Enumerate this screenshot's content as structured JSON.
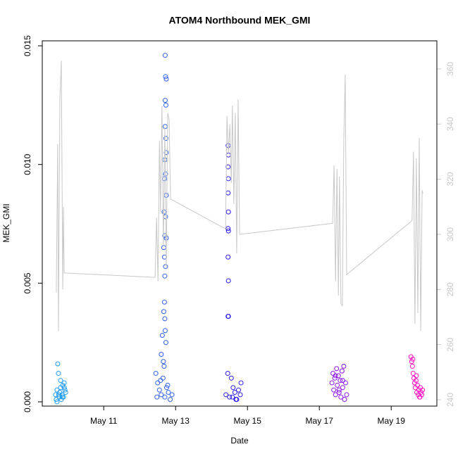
{
  "chart_data": {
    "type": "scatter",
    "title": "ATOM4 Northbound MEK_GMI",
    "xlabel": "Date",
    "ylabel": "MEK_GMI",
    "xlim": [
      9.29,
      20.27
    ],
    "xticks": [
      {
        "value": 11,
        "label": "May 11"
      },
      {
        "value": 13,
        "label": "May 13"
      },
      {
        "value": 15,
        "label": "May 15"
      },
      {
        "value": 17,
        "label": "May 17"
      },
      {
        "value": 19,
        "label": "May 19"
      }
    ],
    "ylim": [
      -0.00018,
      0.01521
    ],
    "yticks": [
      {
        "value": 0,
        "label": "0.000"
      },
      {
        "value": 0.005,
        "label": "0.005"
      },
      {
        "value": 0.01,
        "label": "0.010"
      },
      {
        "value": 0.015,
        "label": "0.015"
      }
    ],
    "y2lim": [
      237.7,
      370.2
    ],
    "y2ticks": [
      240,
      260,
      280,
      300,
      320,
      340,
      360
    ],
    "y2color": "#c8c8c8",
    "series": [
      {
        "color": "#1f9bff",
        "x": [
          9.66,
          9.68,
          9.7,
          9.72,
          9.74,
          9.76,
          9.78,
          9.8,
          9.82,
          9.84,
          9.86,
          9.88,
          9.9,
          9.92,
          9.94,
          9.7,
          9.75,
          9.8,
          9.85,
          9.9
        ],
        "values": [
          0.0003,
          0.0001,
          0.0005,
          0.0016,
          0.0012,
          0.0002,
          0.0004,
          0.0006,
          0.0001,
          0.0003,
          0.0007,
          0.0002,
          0.0008,
          0.0005,
          0.0004,
          0.0,
          0.0003,
          0.0009,
          0.0002,
          0.0006
        ]
      },
      {
        "color": "#2f62f0",
        "x": [
          12.71,
          12.72,
          12.74,
          12.71,
          12.73,
          12.71,
          12.73,
          12.74,
          12.7,
          12.72,
          12.69,
          12.74,
          12.68,
          12.72,
          12.7,
          12.74,
          12.67,
          12.69,
          12.72,
          12.7,
          12.69,
          12.67,
          12.7,
          12.71,
          12.63,
          12.73,
          12.6,
          12.66,
          12.45,
          12.5,
          12.55,
          12.6,
          12.65,
          12.7,
          12.75,
          12.8,
          12.85,
          12.9,
          12.58,
          12.68,
          12.78,
          12.48
        ],
        "values": [
          0.0146,
          0.0137,
          0.0136,
          0.0127,
          0.0125,
          0.0116,
          0.0111,
          0.0105,
          0.0102,
          0.0096,
          0.0094,
          0.0087,
          0.008,
          0.0078,
          0.007,
          0.0069,
          0.0065,
          0.0061,
          0.0057,
          0.0053,
          0.0042,
          0.0038,
          0.0035,
          0.003,
          0.0028,
          0.0025,
          0.002,
          0.0017,
          0.0012,
          0.0008,
          0.0005,
          0.0003,
          0.001,
          0.0002,
          0.0006,
          0.0004,
          0.0001,
          0.0003,
          0.0009,
          0.0015,
          0.0007,
          0.0002
        ]
      },
      {
        "color": "#2a1af0",
        "x": [
          14.46,
          14.47,
          14.46,
          14.47,
          14.46,
          14.47,
          14.46,
          14.47,
          14.46,
          14.47,
          14.46,
          14.47,
          14.45,
          14.55,
          14.6,
          14.4,
          14.5,
          14.65,
          14.7,
          14.75,
          14.8,
          14.82,
          14.58,
          14.68
        ],
        "values": [
          0.0108,
          0.0104,
          0.0099,
          0.0094,
          0.0088,
          0.008,
          0.0073,
          0.0072,
          0.0061,
          0.0051,
          0.0036,
          0.0036,
          0.0012,
          0.001,
          0.0006,
          0.0003,
          0.0002,
          0.0004,
          0.0001,
          0.0005,
          0.0003,
          0.0008,
          0.0002,
          0.0001
        ]
      },
      {
        "color": "#8a12f0",
        "x": [
          17.35,
          17.38,
          17.4,
          17.43,
          17.45,
          17.48,
          17.5,
          17.53,
          17.55,
          17.58,
          17.6,
          17.63,
          17.65,
          17.68,
          17.7,
          17.73,
          17.76,
          17.45,
          17.55,
          17.65
        ],
        "values": [
          0.0008,
          0.0012,
          0.0005,
          0.001,
          0.0003,
          0.0014,
          0.0007,
          0.0011,
          0.0004,
          0.0009,
          0.0002,
          0.0013,
          0.0006,
          0.0015,
          0.0001,
          0.0008,
          0.0003,
          0.0011,
          0.0005,
          0.0009
        ]
      },
      {
        "color": "#ff12c4",
        "x": [
          19.55,
          19.57,
          19.59,
          19.61,
          19.63,
          19.65,
          19.67,
          19.69,
          19.71,
          19.73,
          19.75,
          19.77,
          19.79,
          19.81,
          19.83,
          19.85,
          19.87,
          19.6,
          19.7,
          19.8
        ],
        "values": [
          0.0019,
          0.0017,
          0.0015,
          0.0012,
          0.001,
          0.0008,
          0.0006,
          0.0009,
          0.0004,
          0.0007,
          0.0003,
          0.0005,
          0.0002,
          0.0006,
          0.0004,
          0.0003,
          0.0005,
          0.0018,
          0.0011,
          0.0002
        ]
      },
      {
        "type": "line",
        "axis": "y2",
        "color": "#c8c8c8",
        "x": [
          9.68,
          9.72,
          9.74,
          9.78,
          9.82,
          9.86,
          9.88,
          9.9,
          12.43,
          12.47,
          12.51,
          12.55,
          12.58,
          12.62,
          12.66,
          12.7,
          12.74,
          12.78,
          12.82,
          12.86,
          14.39,
          14.43,
          14.47,
          14.51,
          14.55,
          14.58,
          14.62,
          14.66,
          14.7,
          14.74,
          14.78,
          17.37,
          17.41,
          17.45,
          17.49,
          17.53,
          17.56,
          17.6,
          17.64,
          17.68,
          17.72,
          17.76,
          19.58,
          19.62,
          19.66,
          19.7,
          19.74,
          19.78,
          19.82,
          19.86,
          19.88
        ],
        "values": [
          279,
          332.7,
          265,
          349,
          363,
          280,
          310,
          286,
          284.4,
          306,
          283,
          334,
          308,
          346.7,
          295.6,
          339,
          288,
          344,
          341.6,
          312.8,
          302,
          343,
          329,
          340,
          318.6,
          346.7,
          311,
          344,
          293,
          349,
          300,
          304,
          325,
          283,
          323.7,
          277.8,
          321,
          275,
          274,
          334,
          358,
          285.4,
          305,
          330,
          267.6,
          327.6,
          271.4,
          335,
          265,
          316,
          314.8
        ]
      }
    ]
  }
}
